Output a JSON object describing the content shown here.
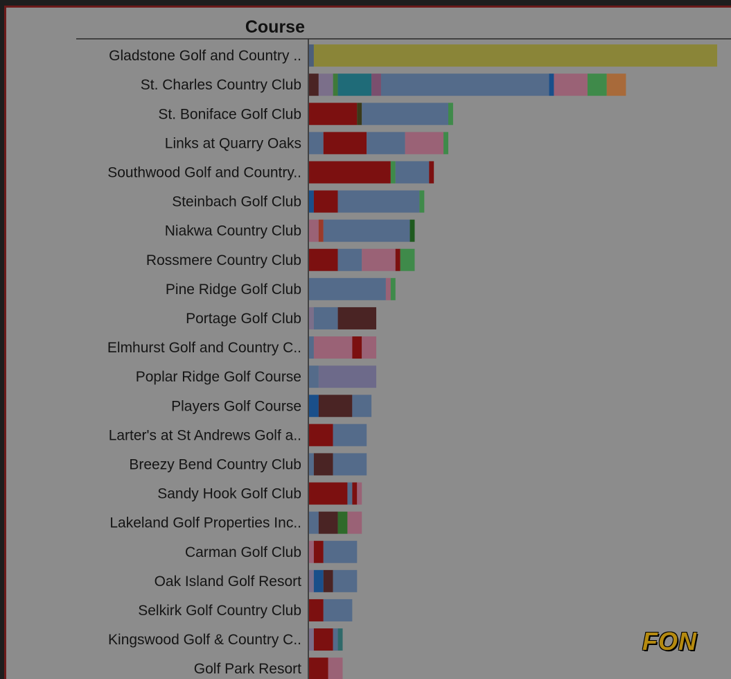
{
  "chart_data": {
    "type": "bar",
    "orientation": "horizontal",
    "stacked": true,
    "header": "Course",
    "categories": [
      "Gladstone Golf and Country ..",
      "St. Charles Country Club",
      "St. Boniface Golf Club",
      "Links at Quarry Oaks",
      "Southwood Golf and Country..",
      "Steinbach Golf Club",
      "Niakwa Country Club",
      "Rossmere Country Club",
      "Pine Ridge Golf Club",
      "Portage Golf Club",
      "Elmhurst Golf and Country C..",
      "Poplar Ridge Golf Course",
      "Players Golf Course",
      "Larter's at St Andrews Golf a..",
      "Breezy Bend Country Club",
      "Sandy Hook Golf Club",
      "Lakeland Golf Properties Inc..",
      "Carman Golf Club",
      "Oak Island Golf Resort",
      "Selkirk Golf Country Club",
      "Kingswood Golf & Country C..",
      "Golf Park Resort"
    ],
    "segments": [
      [
        {
          "v": 1,
          "c": "#4c5f7a"
        },
        {
          "v": 84,
          "c": "#8a8538"
        }
      ],
      [
        {
          "v": 2,
          "c": "#4a2424"
        },
        {
          "v": 3,
          "c": "#7b6f8a"
        },
        {
          "v": 1,
          "c": "#3f7a3a"
        },
        {
          "v": 7,
          "c": "#1f6b78"
        },
        {
          "v": 2,
          "c": "#7a4f6e"
        },
        {
          "v": 35,
          "c": "#546b8a"
        },
        {
          "v": 1,
          "c": "#1a4f8a"
        },
        {
          "v": 7,
          "c": "#9a6276"
        },
        {
          "v": 4,
          "c": "#3f8a4a"
        },
        {
          "v": 4,
          "c": "#a86a3a"
        }
      ],
      [
        {
          "v": 10,
          "c": "#7c1010"
        },
        {
          "v": 1,
          "c": "#3a3a1a"
        },
        {
          "v": 18,
          "c": "#546b8a"
        },
        {
          "v": 1,
          "c": "#3f8a4a"
        }
      ],
      [
        {
          "v": 3,
          "c": "#546b8a"
        },
        {
          "v": 9,
          "c": "#7c1010"
        },
        {
          "v": 8,
          "c": "#546b8a"
        },
        {
          "v": 8,
          "c": "#9a6276"
        },
        {
          "v": 1,
          "c": "#3f8a4a"
        }
      ],
      [
        {
          "v": 17,
          "c": "#7c1010"
        },
        {
          "v": 1,
          "c": "#3f8a4a"
        },
        {
          "v": 7,
          "c": "#546b8a"
        },
        {
          "v": 1,
          "c": "#7c1010"
        }
      ],
      [
        {
          "v": 1,
          "c": "#1a4f8a"
        },
        {
          "v": 5,
          "c": "#7c1010"
        },
        {
          "v": 17,
          "c": "#546b8a"
        },
        {
          "v": 1,
          "c": "#3f8a4a"
        }
      ],
      [
        {
          "v": 2,
          "c": "#9a6276"
        },
        {
          "v": 1,
          "c": "#9a3a2a"
        },
        {
          "v": 18,
          "c": "#546b8a"
        },
        {
          "v": 1,
          "c": "#1f5a1f"
        }
      ],
      [
        {
          "v": 6,
          "c": "#7c1010"
        },
        {
          "v": 5,
          "c": "#546b8a"
        },
        {
          "v": 7,
          "c": "#9a6276"
        },
        {
          "v": 1,
          "c": "#7c1010"
        },
        {
          "v": 3,
          "c": "#3f8a4a"
        }
      ],
      [
        {
          "v": 16,
          "c": "#546b8a"
        },
        {
          "v": 1,
          "c": "#9a6276"
        },
        {
          "v": 1,
          "c": "#3f8a4a"
        }
      ],
      [
        {
          "v": 1,
          "c": "#7b6f8a"
        },
        {
          "v": 5,
          "c": "#546b8a"
        },
        {
          "v": 8,
          "c": "#4a2424"
        }
      ],
      [
        {
          "v": 1,
          "c": "#546b8a"
        },
        {
          "v": 8,
          "c": "#9a6276"
        },
        {
          "v": 2,
          "c": "#7c1010"
        },
        {
          "v": 3,
          "c": "#9a6276"
        }
      ],
      [
        {
          "v": 2,
          "c": "#546b8a"
        },
        {
          "v": 12,
          "c": "#6d6a8a"
        }
      ],
      [
        {
          "v": 2,
          "c": "#1a4f8a"
        },
        {
          "v": 7,
          "c": "#4a2424"
        },
        {
          "v": 4,
          "c": "#546b8a"
        }
      ],
      [
        {
          "v": 5,
          "c": "#7c1010"
        },
        {
          "v": 7,
          "c": "#546b8a"
        }
      ],
      [
        {
          "v": 1,
          "c": "#546b8a"
        },
        {
          "v": 4,
          "c": "#4a2424"
        },
        {
          "v": 7,
          "c": "#546b8a"
        }
      ],
      [
        {
          "v": 8,
          "c": "#7c1010"
        },
        {
          "v": 1,
          "c": "#546b8a"
        },
        {
          "v": 1,
          "c": "#7c1010"
        },
        {
          "v": 1,
          "c": "#9a6276"
        }
      ],
      [
        {
          "v": 2,
          "c": "#546b8a"
        },
        {
          "v": 4,
          "c": "#4a2424"
        },
        {
          "v": 2,
          "c": "#2f6a2a"
        },
        {
          "v": 3,
          "c": "#9a6276"
        }
      ],
      [
        {
          "v": 1,
          "c": "#9a6276"
        },
        {
          "v": 2,
          "c": "#7c1010"
        },
        {
          "v": 7,
          "c": "#546b8a"
        }
      ],
      [
        {
          "v": 1,
          "c": "#7b6f8a"
        },
        {
          "v": 2,
          "c": "#1a4f8a"
        },
        {
          "v": 2,
          "c": "#4a2424"
        },
        {
          "v": 5,
          "c": "#546b8a"
        }
      ],
      [
        {
          "v": 3,
          "c": "#7c1010"
        },
        {
          "v": 6,
          "c": "#546b8a"
        }
      ],
      [
        {
          "v": 1,
          "c": "#7b6f8a"
        },
        {
          "v": 4,
          "c": "#7c1010"
        },
        {
          "v": 1,
          "c": "#546b8a"
        },
        {
          "v": 1,
          "c": "#2f6a6a"
        }
      ],
      [
        {
          "v": 4,
          "c": "#7c1010"
        },
        {
          "v": 3,
          "c": "#9a6276"
        }
      ]
    ],
    "xlim": [
      0,
      86
    ],
    "grid": false,
    "legend": "none"
  },
  "watermark": "FON"
}
